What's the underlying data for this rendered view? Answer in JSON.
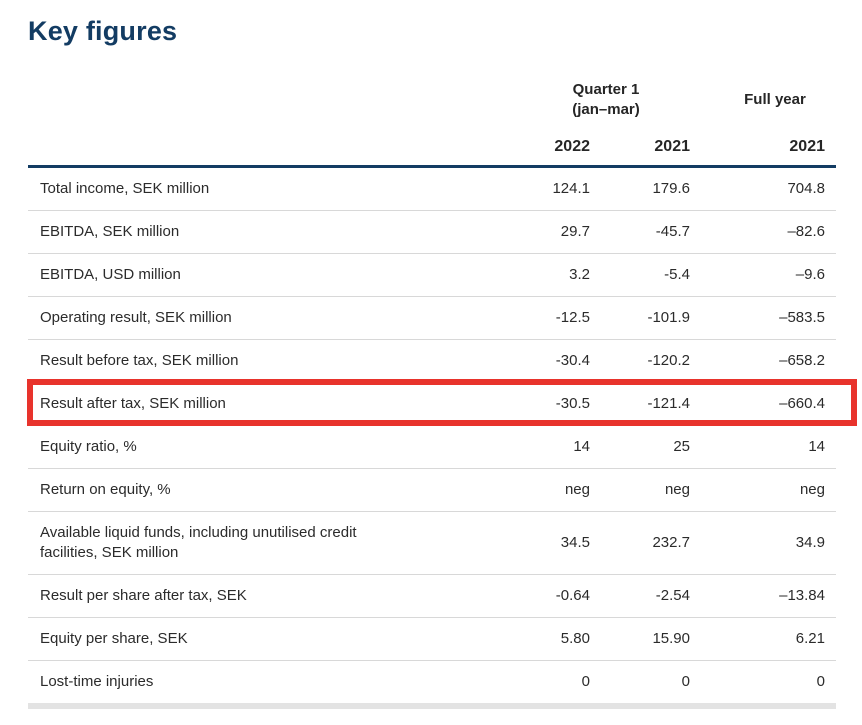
{
  "page_title": "Key figures",
  "colors": {
    "accent_navy": "#133c63",
    "highlight_red": "#e8332c",
    "row_divider": "#d8d8d8",
    "bottom_bar": "#e3e3e3",
    "text": "#2b2b2b"
  },
  "table": {
    "column_group_headers": {
      "quarter_line1": "Quarter 1",
      "quarter_line2": "(jan–mar)",
      "full_year": "Full year"
    },
    "year_headers": [
      "2022",
      "2021",
      "2021"
    ],
    "rows": [
      {
        "label": "Total income, SEK million",
        "values": [
          "124.1",
          "179.6",
          "704.8"
        ],
        "highlight": false
      },
      {
        "label": "EBITDA, SEK million",
        "values": [
          "29.7",
          "-45.7",
          "–82.6"
        ],
        "highlight": false
      },
      {
        "label": "EBITDA, USD million",
        "values": [
          "3.2",
          "-5.4",
          "–9.6"
        ],
        "highlight": false
      },
      {
        "label": "Operating result, SEK million",
        "values": [
          "-12.5",
          "-101.9",
          "–583.5"
        ],
        "highlight": false
      },
      {
        "label": "Result before tax, SEK million",
        "values": [
          "-30.4",
          "-120.2",
          "–658.2"
        ],
        "highlight": false
      },
      {
        "label": "Result after tax, SEK million",
        "values": [
          "-30.5",
          "-121.4",
          "–660.4"
        ],
        "highlight": true
      },
      {
        "label": "Equity ratio, %",
        "values": [
          "14",
          "25",
          "14"
        ],
        "highlight": false
      },
      {
        "label": "Return on equity, %",
        "values": [
          "neg",
          "neg",
          "neg"
        ],
        "highlight": false
      },
      {
        "label": "Available liquid funds, including unutilised credit facilities, SEK million",
        "values": [
          "34.5",
          "232.7",
          "34.9"
        ],
        "highlight": false
      },
      {
        "label": "Result per share after tax, SEK",
        "values": [
          "-0.64",
          "-2.54",
          "–13.84"
        ],
        "highlight": false
      },
      {
        "label": "Equity per share, SEK",
        "values": [
          "5.80",
          "15.90",
          "6.21"
        ],
        "highlight": false
      },
      {
        "label": "Lost-time injuries",
        "values": [
          "0",
          "0",
          "0"
        ],
        "highlight": false
      }
    ]
  }
}
